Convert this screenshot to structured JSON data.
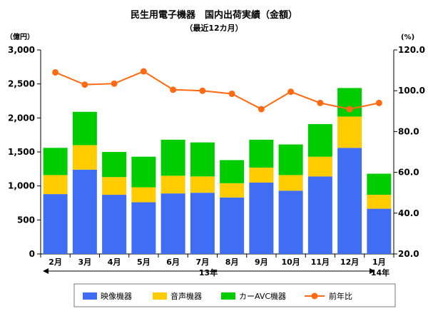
{
  "chart_data": {
    "type": "bar",
    "stacked": true,
    "title": "民生用電子機器　国内出荷実績（金額）",
    "subtitle": "（最近12カ月）",
    "y_left_unit": "（億円）",
    "y_right_unit": "(%)",
    "y_left_ticks": [
      "0",
      "500",
      "1,000",
      "1,500",
      "2,000",
      "2,500",
      "3,000"
    ],
    "y_right_ticks": [
      "20.0",
      "40.0",
      "60.0",
      "80.0",
      "100.0",
      "120.0"
    ],
    "ylim_left": [
      0,
      3000
    ],
    "ylim_right": [
      20,
      120
    ],
    "categories": [
      "2月",
      "3月",
      "4月",
      "5月",
      "6月",
      "7月",
      "8月",
      "9月",
      "10月",
      "11月",
      "12月",
      "1月"
    ],
    "year_labels": {
      "first": "13年",
      "second": "14年"
    },
    "series": [
      {
        "name": "映像機器",
        "color": "#3f6ef5",
        "values": [
          880,
          1240,
          870,
          760,
          890,
          900,
          830,
          1050,
          930,
          1140,
          1560,
          665
        ]
      },
      {
        "name": "音声機器",
        "color": "#ffcc00",
        "values": [
          280,
          360,
          260,
          220,
          260,
          240,
          210,
          220,
          230,
          290,
          460,
          205
        ]
      },
      {
        "name": "カーAVC機器",
        "color": "#00cc00",
        "values": [
          400,
          490,
          370,
          450,
          530,
          500,
          340,
          410,
          450,
          480,
          420,
          310
        ]
      },
      {
        "name": "前年比",
        "color": "#ff6a13",
        "type": "line",
        "axis": "right",
        "values": [
          109.0,
          103.0,
          103.5,
          109.5,
          100.5,
          100.0,
          98.5,
          91.0,
          99.5,
          94.0,
          91.0,
          94.0
        ]
      }
    ],
    "grid": false,
    "legend_position": "bottom"
  }
}
